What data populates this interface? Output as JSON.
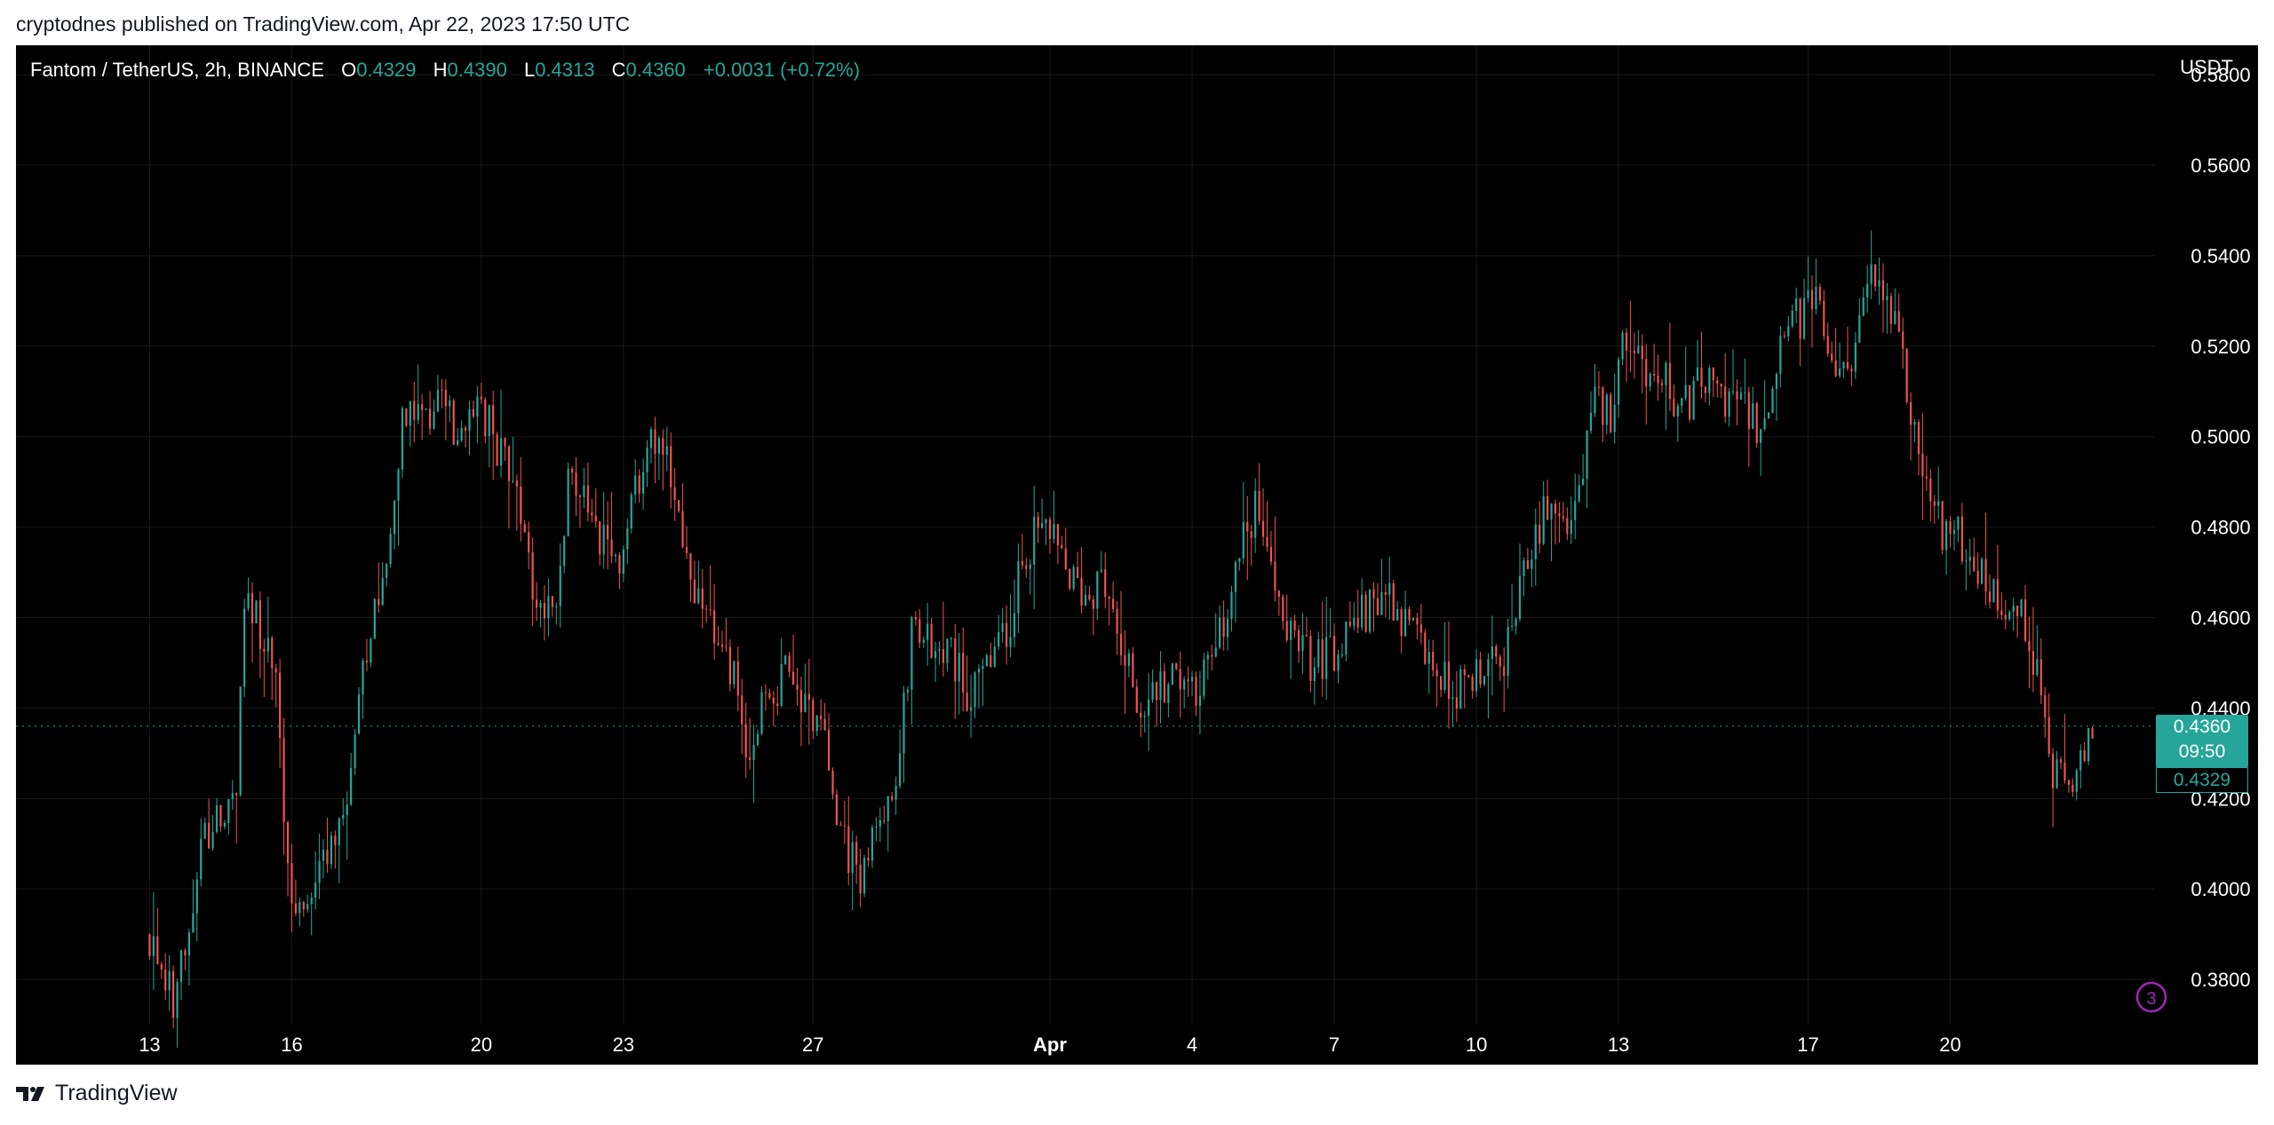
{
  "header": {
    "published": "cryptodnes published on TradingView.com, Apr 22, 2023 17:50 UTC"
  },
  "legend": {
    "symbol": "Fantom / TetherUS, 2h, BINANCE",
    "o_label": "O",
    "o_value": "0.4329",
    "h_label": "H",
    "h_value": "0.4390",
    "l_label": "L",
    "l_value": "0.4313",
    "c_label": "C",
    "c_value": "0.4360",
    "change": "+0.0031 (+0.72%)"
  },
  "axis": {
    "currency": "USDT"
  },
  "price_tag": {
    "last": "0.4360",
    "countdown": "09:50",
    "open": "0.4329"
  },
  "footer": {
    "brand": "TradingView"
  },
  "colors": {
    "up": "#26a69a",
    "down": "#ef5350",
    "background": "#000000",
    "text": "#ffffff",
    "grid": "#1a1a1a"
  },
  "chart_data": {
    "type": "candlestick",
    "interval": "2h",
    "pair": "FTM/USDT",
    "exchange": "BINANCE",
    "ylim": [
      0.37,
      0.5865
    ],
    "yticks": [
      "0.5800",
      "0.5600",
      "0.5400",
      "0.5200",
      "0.5000",
      "0.4800",
      "0.4600",
      "0.4400",
      "0.4200",
      "0.4000",
      "0.3800"
    ],
    "xlabels": [
      {
        "day": 13,
        "label": "13"
      },
      {
        "day": 16,
        "label": "16"
      },
      {
        "day": 20,
        "label": "20"
      },
      {
        "day": 23,
        "label": "23"
      },
      {
        "day": 27,
        "label": "27"
      },
      {
        "day": 32,
        "label": "Apr",
        "bold": true
      },
      {
        "day": 35,
        "label": "4"
      },
      {
        "day": 38,
        "label": "7"
      },
      {
        "day": 41,
        "label": "10"
      },
      {
        "day": 44,
        "label": "13"
      },
      {
        "day": 48,
        "label": "17"
      },
      {
        "day": 51,
        "label": "20"
      }
    ],
    "x_domain": [
      10.18,
      55.32
    ],
    "current_price": 0.436,
    "last_open": 0.4329,
    "path": [
      [
        13.0,
        0.39
      ],
      [
        13.3,
        0.382
      ],
      [
        13.6,
        0.375
      ],
      [
        13.9,
        0.388
      ],
      [
        14.2,
        0.412
      ],
      [
        14.6,
        0.415
      ],
      [
        14.9,
        0.42
      ],
      [
        15.1,
        0.462
      ],
      [
        15.3,
        0.46
      ],
      [
        15.7,
        0.452
      ],
      [
        16.0,
        0.403
      ],
      [
        16.3,
        0.396
      ],
      [
        16.6,
        0.405
      ],
      [
        16.9,
        0.41
      ],
      [
        17.2,
        0.415
      ],
      [
        17.5,
        0.442
      ],
      [
        17.8,
        0.462
      ],
      [
        18.1,
        0.472
      ],
      [
        18.4,
        0.505
      ],
      [
        18.8,
        0.503
      ],
      [
        19.2,
        0.51
      ],
      [
        19.6,
        0.5
      ],
      [
        20.0,
        0.51
      ],
      [
        20.4,
        0.498
      ],
      [
        20.8,
        0.488
      ],
      [
        21.2,
        0.467
      ],
      [
        21.6,
        0.458
      ],
      [
        21.9,
        0.49
      ],
      [
        22.3,
        0.485
      ],
      [
        22.7,
        0.475
      ],
      [
        23.0,
        0.47
      ],
      [
        23.4,
        0.49
      ],
      [
        23.7,
        0.498
      ],
      [
        24.1,
        0.493
      ],
      [
        24.5,
        0.47
      ],
      [
        24.9,
        0.458
      ],
      [
        25.3,
        0.452
      ],
      [
        25.7,
        0.43
      ],
      [
        26.1,
        0.442
      ],
      [
        26.5,
        0.447
      ],
      [
        26.9,
        0.44
      ],
      [
        27.3,
        0.433
      ],
      [
        27.7,
        0.41
      ],
      [
        28.1,
        0.403
      ],
      [
        28.5,
        0.415
      ],
      [
        28.9,
        0.43
      ],
      [
        29.2,
        0.46
      ],
      [
        29.6,
        0.453
      ],
      [
        30.0,
        0.451
      ],
      [
        30.4,
        0.442
      ],
      [
        30.8,
        0.45
      ],
      [
        31.2,
        0.458
      ],
      [
        31.6,
        0.476
      ],
      [
        32.0,
        0.48
      ],
      [
        32.4,
        0.47
      ],
      [
        32.8,
        0.465
      ],
      [
        33.2,
        0.468
      ],
      [
        33.6,
        0.452
      ],
      [
        34.0,
        0.44
      ],
      [
        34.4,
        0.445
      ],
      [
        34.8,
        0.448
      ],
      [
        35.2,
        0.445
      ],
      [
        35.6,
        0.452
      ],
      [
        36.0,
        0.47
      ],
      [
        36.4,
        0.485
      ],
      [
        36.8,
        0.465
      ],
      [
        37.2,
        0.455
      ],
      [
        37.6,
        0.45
      ],
      [
        38.0,
        0.452
      ],
      [
        38.4,
        0.458
      ],
      [
        38.8,
        0.462
      ],
      [
        39.2,
        0.467
      ],
      [
        39.6,
        0.458
      ],
      [
        40.0,
        0.452
      ],
      [
        40.4,
        0.446
      ],
      [
        40.8,
        0.444
      ],
      [
        41.2,
        0.45
      ],
      [
        41.6,
        0.448
      ],
      [
        41.9,
        0.46
      ],
      [
        42.3,
        0.478
      ],
      [
        42.6,
        0.485
      ],
      [
        43.0,
        0.48
      ],
      [
        43.3,
        0.49
      ],
      [
        43.6,
        0.508
      ],
      [
        43.9,
        0.505
      ],
      [
        44.2,
        0.522
      ],
      [
        44.5,
        0.52
      ],
      [
        44.8,
        0.512
      ],
      [
        45.1,
        0.512
      ],
      [
        45.4,
        0.505
      ],
      [
        45.8,
        0.512
      ],
      [
        46.2,
        0.51
      ],
      [
        46.6,
        0.508
      ],
      [
        47.0,
        0.503
      ],
      [
        47.3,
        0.51
      ],
      [
        47.6,
        0.528
      ],
      [
        47.9,
        0.525
      ],
      [
        48.2,
        0.53
      ],
      [
        48.5,
        0.52
      ],
      [
        48.8,
        0.512
      ],
      [
        49.1,
        0.522
      ],
      [
        49.4,
        0.535
      ],
      [
        49.7,
        0.53
      ],
      [
        50.0,
        0.52
      ],
      [
        50.3,
        0.502
      ],
      [
        50.6,
        0.488
      ],
      [
        50.9,
        0.48
      ],
      [
        51.2,
        0.478
      ],
      [
        51.5,
        0.475
      ],
      [
        51.8,
        0.468
      ],
      [
        52.1,
        0.465
      ],
      [
        52.4,
        0.462
      ],
      [
        52.7,
        0.458
      ],
      [
        53.0,
        0.445
      ],
      [
        53.2,
        0.425
      ],
      [
        53.5,
        0.423
      ],
      [
        53.8,
        0.425
      ],
      [
        54.0,
        0.431
      ]
    ]
  }
}
